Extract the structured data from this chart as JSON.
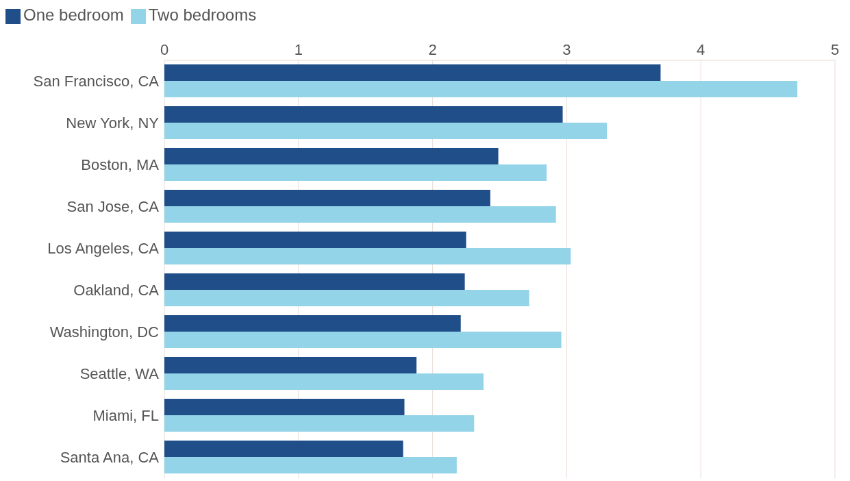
{
  "chart_data": {
    "type": "bar",
    "orientation": "horizontal",
    "categories": [
      "San Francisco, CA",
      "New York, NY",
      "Boston, MA",
      "San Jose, CA",
      "Los Angeles, CA",
      "Oakland, CA",
      "Washington, DC",
      "Seattle, WA",
      "Miami, FL",
      "Santa Ana, CA"
    ],
    "series": [
      {
        "name": "One bedroom",
        "color": "#1f4e89",
        "values": [
          3.7,
          2.97,
          2.49,
          2.43,
          2.25,
          2.24,
          2.21,
          1.88,
          1.79,
          1.78
        ]
      },
      {
        "name": "Two bedrooms",
        "color": "#94d4e9",
        "values": [
          4.72,
          3.3,
          2.85,
          2.92,
          3.03,
          2.72,
          2.96,
          2.38,
          2.31,
          2.18
        ]
      }
    ],
    "xlim": [
      0,
      5
    ],
    "xticks": [
      0,
      1,
      2,
      3,
      4,
      5
    ],
    "grid": "x",
    "legend": "top left"
  }
}
